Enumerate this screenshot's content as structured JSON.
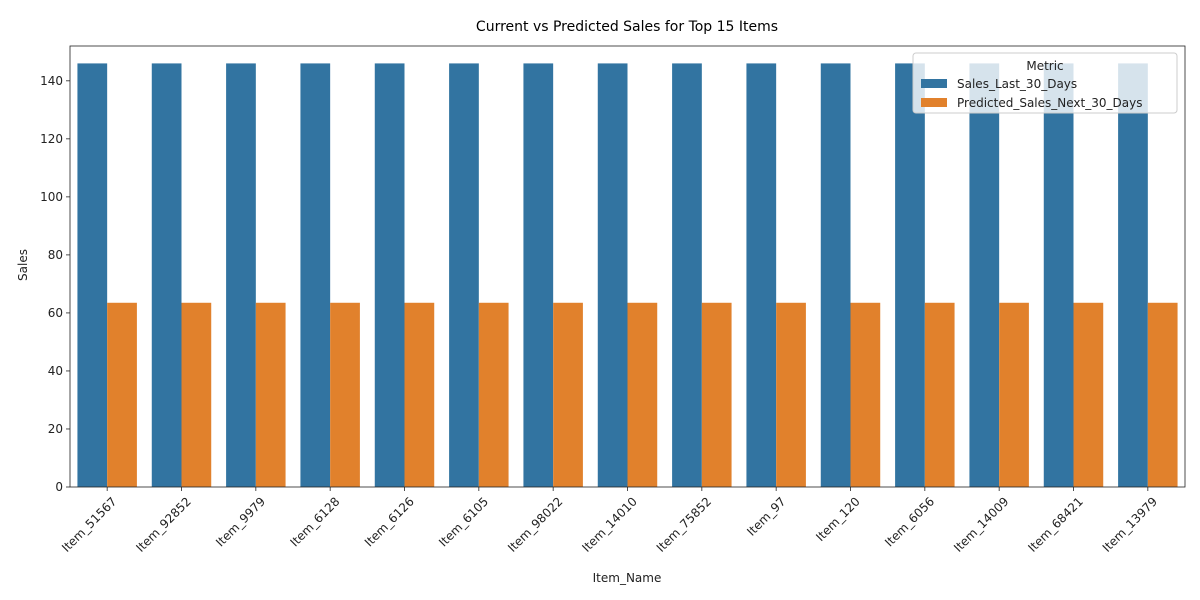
{
  "chart_data": {
    "type": "bar",
    "title": "Current vs Predicted Sales for Top 15 Items",
    "xlabel": "Item_Name",
    "ylabel": "Sales",
    "ylim": [
      0,
      152
    ],
    "yticks": [
      0,
      20,
      40,
      60,
      80,
      100,
      120,
      140
    ],
    "grid": false,
    "legend": {
      "title": "Metric",
      "placement": "top-right"
    },
    "categories": [
      "Item_51567",
      "Item_92852",
      "Item_9979",
      "Item_6128",
      "Item_6126",
      "Item_6105",
      "Item_98022",
      "Item_14010",
      "Item_75852",
      "Item_97",
      "Item_120",
      "Item_6056",
      "Item_14009",
      "Item_68421",
      "Item_13979"
    ],
    "series": [
      {
        "name": "Sales_Last_30_Days",
        "color": "#3274a1",
        "values": [
          146,
          146,
          146,
          146,
          146,
          146,
          146,
          146,
          146,
          146,
          146,
          146,
          146,
          146,
          146
        ]
      },
      {
        "name": "Predicted_Sales_Next_30_Days",
        "color": "#e1812c",
        "values": [
          63.5,
          63.5,
          63.5,
          63.5,
          63.5,
          63.5,
          63.5,
          63.5,
          63.5,
          63.5,
          63.5,
          63.5,
          63.5,
          63.5,
          63.5
        ]
      }
    ]
  }
}
